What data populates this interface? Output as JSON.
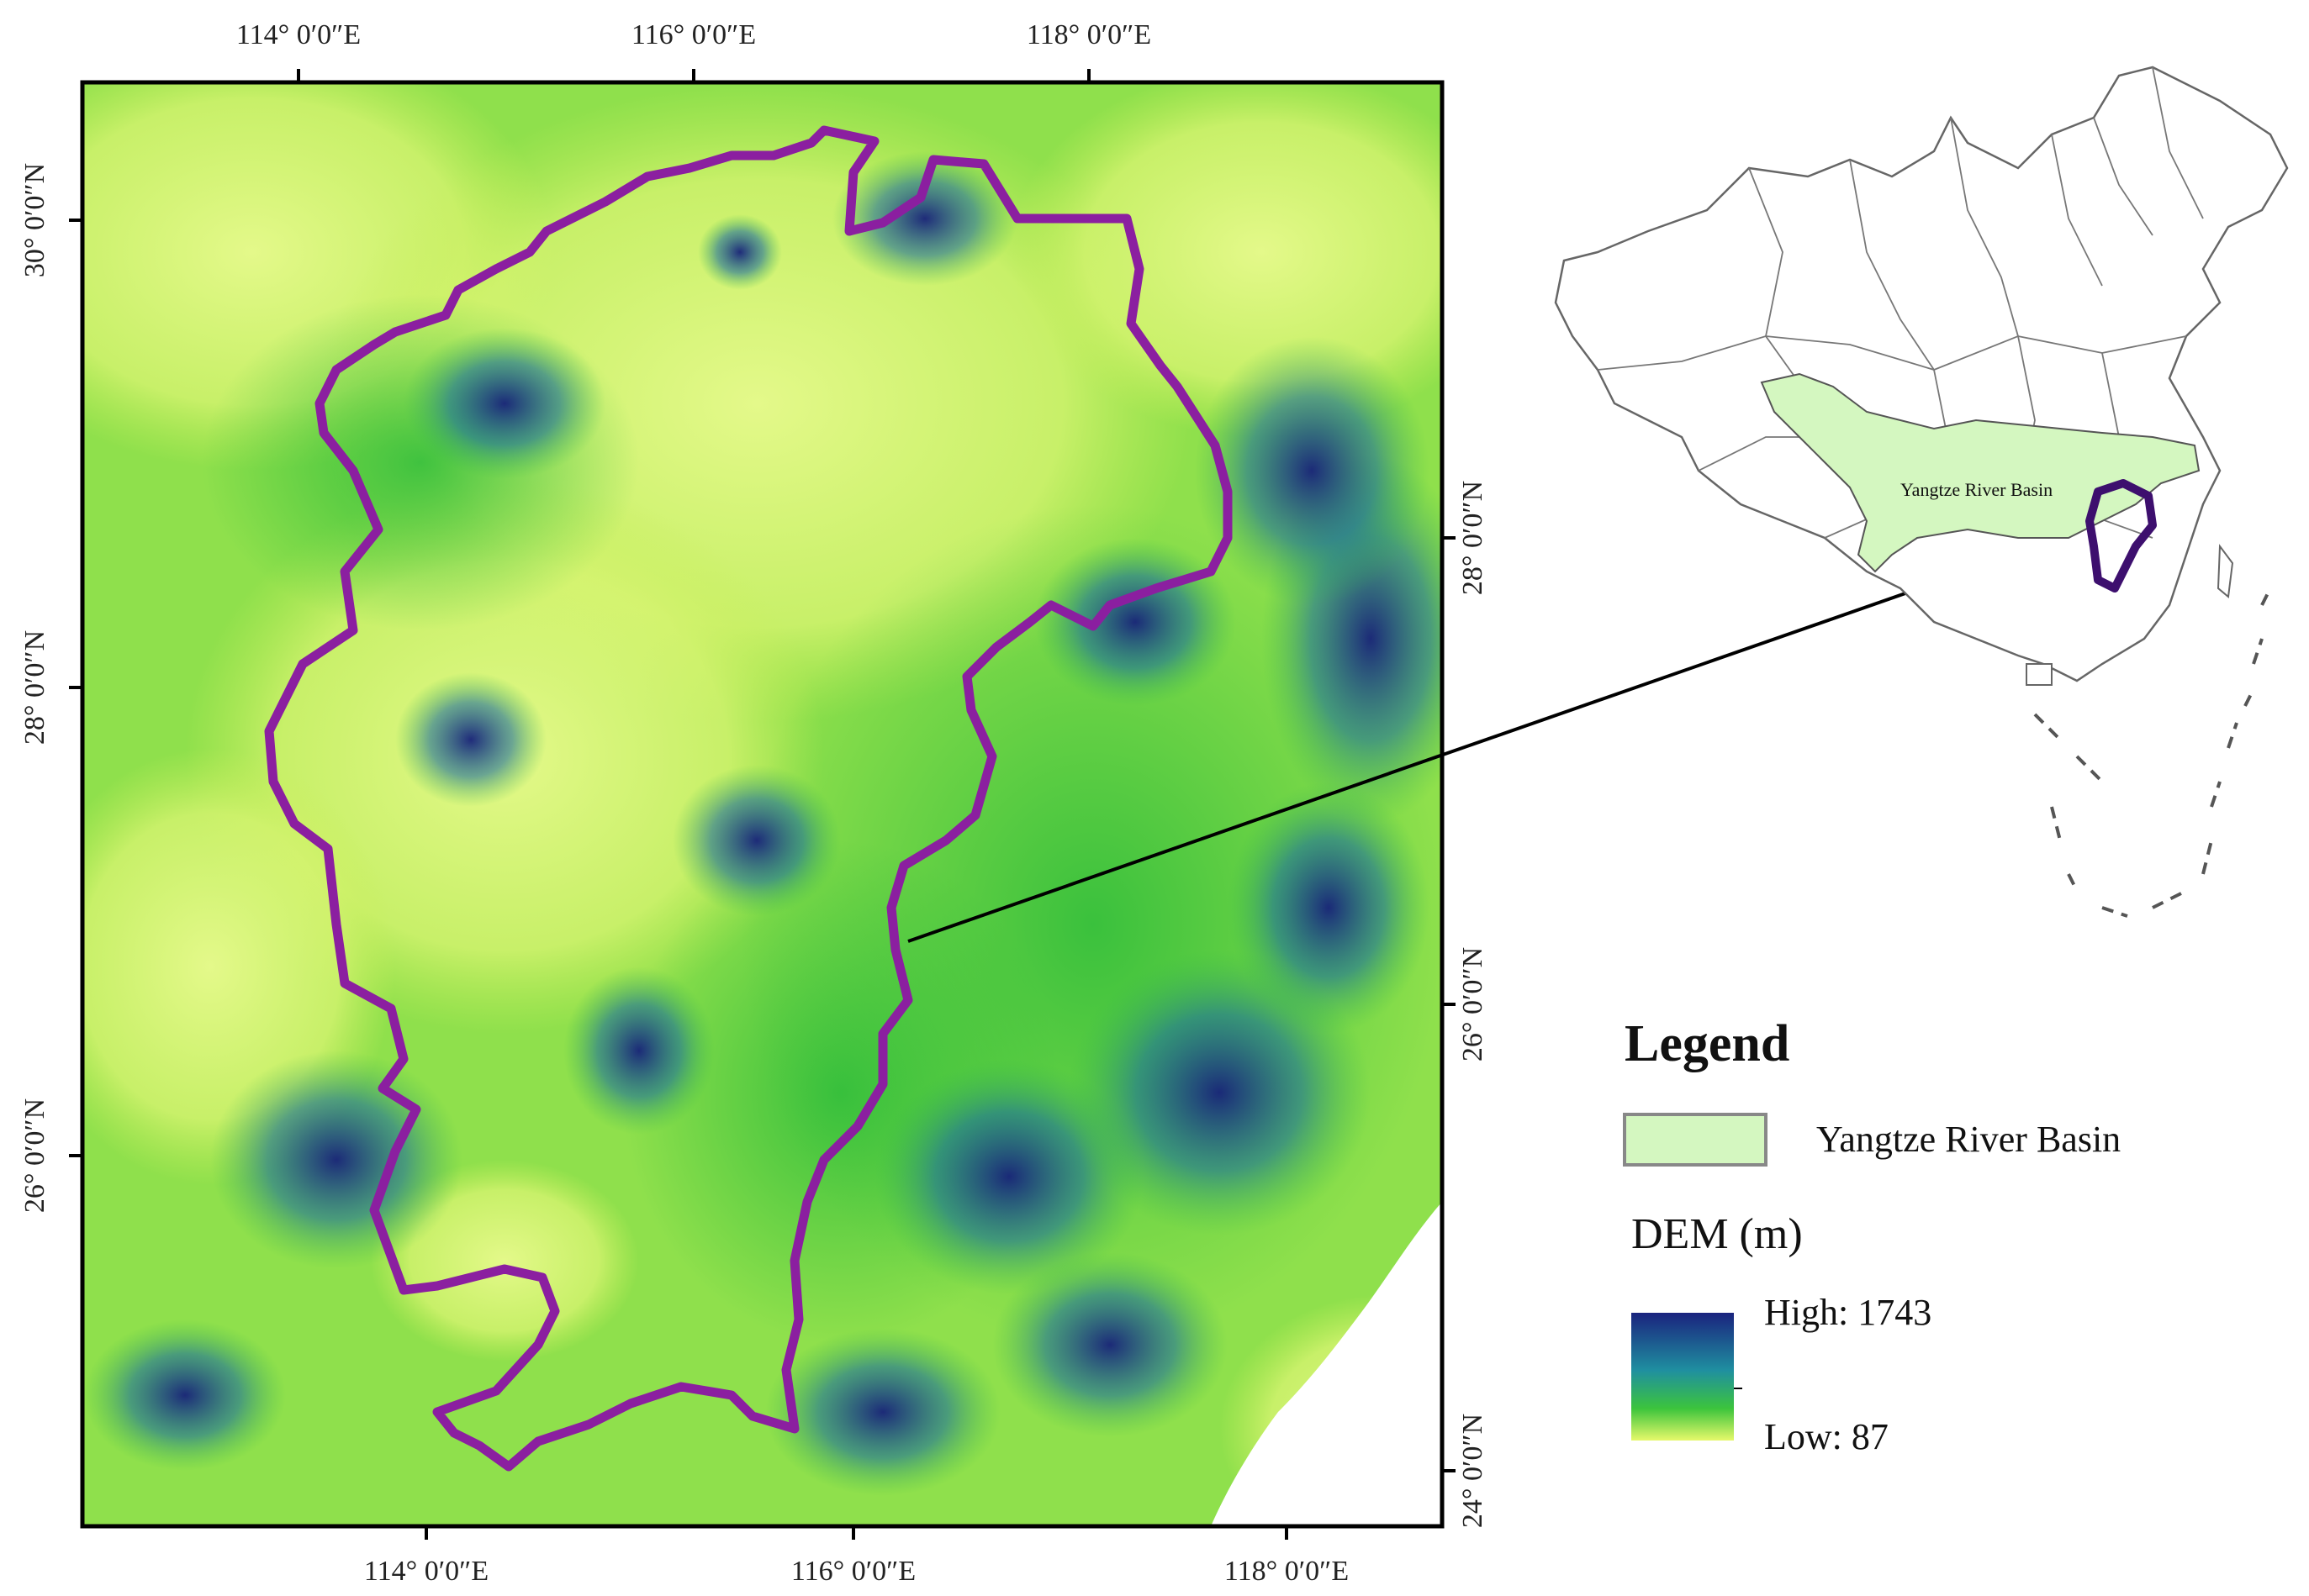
{
  "main_map": {
    "top_axis_labels": [
      "114° 0′0″E",
      "116° 0′0″E",
      "118° 0′0″E"
    ],
    "bottom_axis_labels": [
      "114° 0′0″E",
      "116° 0′0″E",
      "118° 0′0″E"
    ],
    "left_axis_labels": [
      "30° 0′0″N",
      "28° 0′0″N",
      "26° 0′0″N"
    ],
    "right_axis_labels": [
      "28° 0′0″N",
      "26° 0′0″N",
      "24° 0′0″N"
    ],
    "boundary_color": "#8b1fa0"
  },
  "inset_map": {
    "region_label": "Yangtze River Basin",
    "basin_fill": "#d4f7c0",
    "highlight_color": "#3d0f6e"
  },
  "legend": {
    "title": "Legend",
    "basin_entry": "Yangtze River Basin",
    "dem_title": "DEM (m)",
    "high_label": "High:  1743",
    "low_label": "Low:  87",
    "ramp_colors": [
      "#1a237e",
      "#1f8fa0",
      "#3cc43c",
      "#d8f56a"
    ]
  }
}
